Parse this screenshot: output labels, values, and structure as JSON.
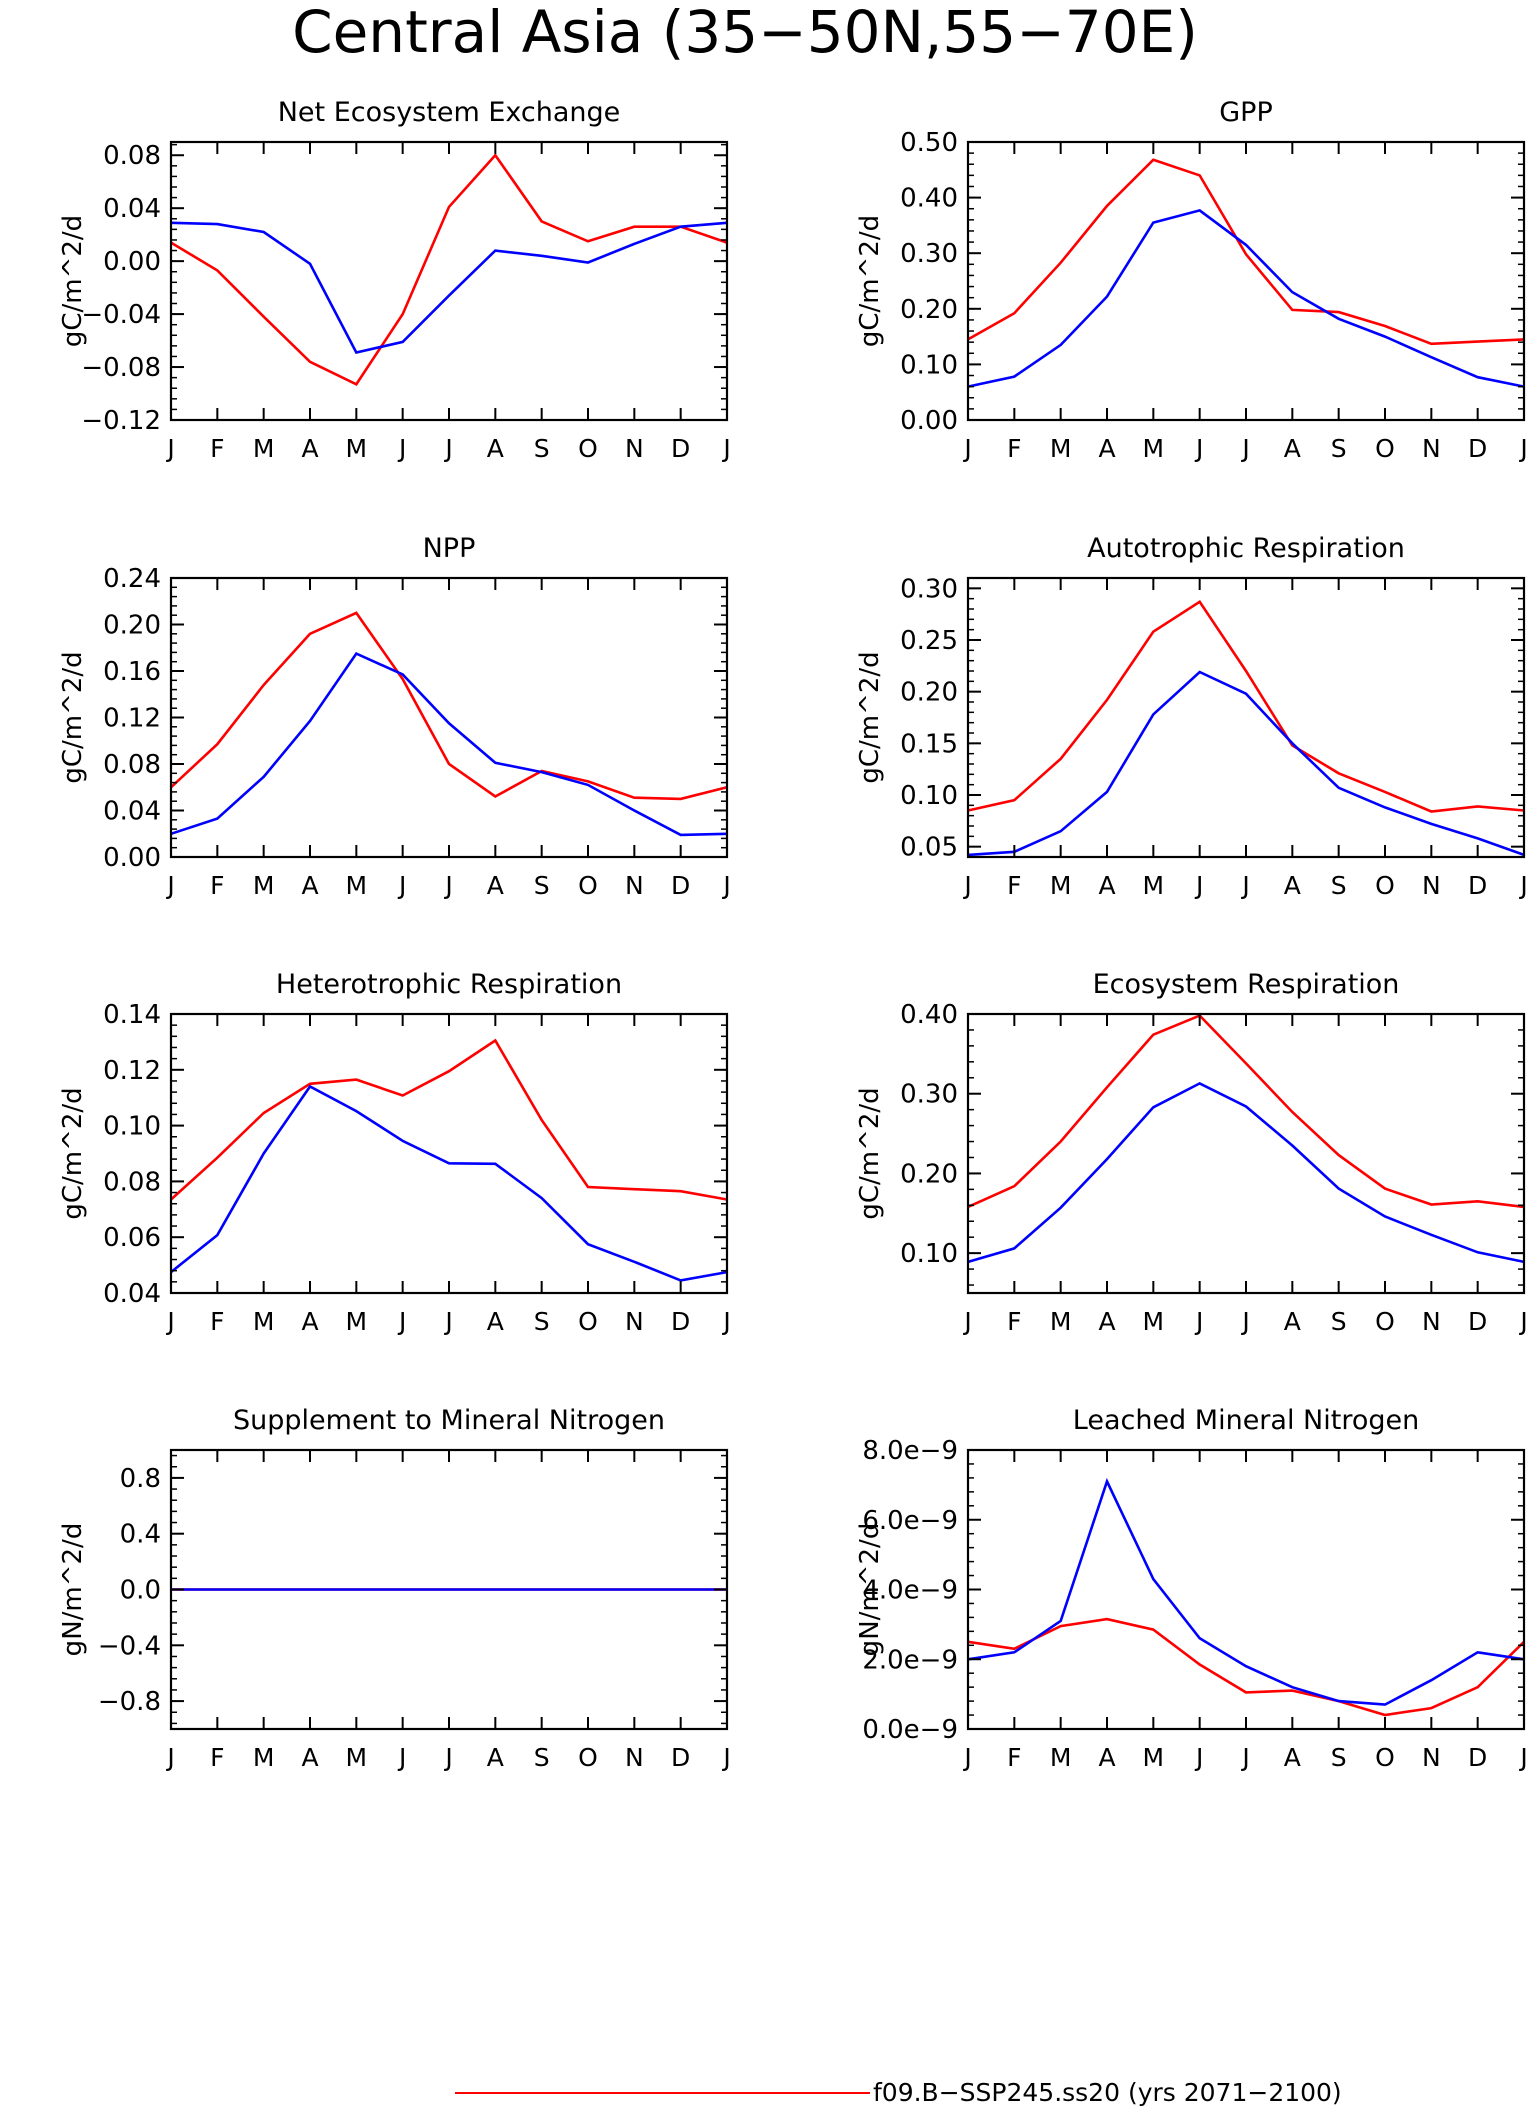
{
  "figure": {
    "title": "Central Asia (35−50N,55−70E)",
    "legend": [
      {
        "label": "f09.B−SSP245.ss20 (yrs 2071−2100)",
        "color": "#ff0000"
      }
    ]
  },
  "chart_data": [
    {
      "type": "line",
      "title": "Net Ecosystem Exchange",
      "ylabel": "gC/m^2/d",
      "categories": [
        "J",
        "F",
        "M",
        "A",
        "M",
        "J",
        "J",
        "A",
        "S",
        "O",
        "N",
        "D",
        "J"
      ],
      "ylim": [
        -0.12,
        0.09
      ],
      "yticks": [
        -0.12,
        -0.08,
        -0.04,
        0.0,
        0.04,
        0.08
      ],
      "yticklabels": [
        "−0.12",
        "−0.08",
        "−0.04",
        "0.00",
        "0.04",
        "0.08"
      ],
      "series": [
        {
          "color": "#ff0000",
          "values": [
            0.014,
            -0.007,
            -0.042,
            -0.076,
            -0.093,
            -0.04,
            0.041,
            0.08,
            0.03,
            0.015,
            0.026,
            0.026,
            0.014
          ]
        },
        {
          "color": "#0000ff",
          "values": [
            0.029,
            0.028,
            0.022,
            -0.002,
            -0.069,
            -0.061,
            -0.026,
            0.008,
            0.004,
            -0.001,
            0.013,
            0.026,
            0.029
          ]
        }
      ]
    },
    {
      "type": "line",
      "title": "GPP",
      "ylabel": "gC/m^2/d",
      "categories": [
        "J",
        "F",
        "M",
        "A",
        "M",
        "J",
        "J",
        "A",
        "S",
        "O",
        "N",
        "D",
        "J"
      ],
      "ylim": [
        0.0,
        0.5
      ],
      "yticks": [
        0.0,
        0.1,
        0.2,
        0.3,
        0.4,
        0.5
      ],
      "yticklabels": [
        "0.00",
        "0.10",
        "0.20",
        "0.30",
        "0.40",
        "0.50"
      ],
      "series": [
        {
          "color": "#ff0000",
          "values": [
            0.145,
            0.192,
            0.283,
            0.385,
            0.468,
            0.44,
            0.298,
            0.198,
            0.194,
            0.169,
            0.137,
            0.141,
            0.145
          ]
        },
        {
          "color": "#0000ff",
          "values": [
            0.06,
            0.078,
            0.135,
            0.222,
            0.355,
            0.377,
            0.315,
            0.23,
            0.182,
            0.15,
            0.113,
            0.077,
            0.06
          ]
        }
      ]
    },
    {
      "type": "line",
      "title": "NPP",
      "ylabel": "gC/m^2/d",
      "categories": [
        "J",
        "F",
        "M",
        "A",
        "M",
        "J",
        "J",
        "A",
        "S",
        "O",
        "N",
        "D",
        "J"
      ],
      "ylim": [
        0.0,
        0.24
      ],
      "yticks": [
        0.0,
        0.04,
        0.08,
        0.12,
        0.16,
        0.2,
        0.24
      ],
      "yticklabels": [
        "0.00",
        "0.04",
        "0.08",
        "0.12",
        "0.16",
        "0.20",
        "0.24"
      ],
      "series": [
        {
          "color": "#ff0000",
          "values": [
            0.06,
            0.097,
            0.148,
            0.192,
            0.21,
            0.153,
            0.08,
            0.052,
            0.074,
            0.065,
            0.051,
            0.05,
            0.06
          ]
        },
        {
          "color": "#0000ff",
          "values": [
            0.02,
            0.033,
            0.069,
            0.117,
            0.175,
            0.157,
            0.115,
            0.081,
            0.073,
            0.062,
            0.04,
            0.019,
            0.02
          ]
        }
      ]
    },
    {
      "type": "line",
      "title": "Autotrophic Respiration",
      "ylabel": "gC/m^2/d",
      "categories": [
        "J",
        "F",
        "M",
        "A",
        "M",
        "J",
        "J",
        "A",
        "S",
        "O",
        "N",
        "D",
        "J"
      ],
      "ylim": [
        0.04,
        0.31
      ],
      "yticks": [
        0.05,
        0.1,
        0.15,
        0.2,
        0.25,
        0.3
      ],
      "yticklabels": [
        "0.05",
        "0.10",
        "0.15",
        "0.20",
        "0.25",
        "0.30"
      ],
      "series": [
        {
          "color": "#ff0000",
          "values": [
            0.085,
            0.095,
            0.135,
            0.192,
            0.258,
            0.287,
            0.22,
            0.148,
            0.121,
            0.103,
            0.084,
            0.089,
            0.085
          ]
        },
        {
          "color": "#0000ff",
          "values": [
            0.042,
            0.045,
            0.065,
            0.103,
            0.178,
            0.219,
            0.198,
            0.15,
            0.107,
            0.088,
            0.072,
            0.058,
            0.042
          ]
        }
      ]
    },
    {
      "type": "line",
      "title": "Heterotrophic Respiration",
      "ylabel": "gC/m^2/d",
      "categories": [
        "J",
        "F",
        "M",
        "A",
        "M",
        "J",
        "J",
        "A",
        "S",
        "O",
        "N",
        "D",
        "J"
      ],
      "ylim": [
        0.04,
        0.14
      ],
      "yticks": [
        0.04,
        0.06,
        0.08,
        0.1,
        0.12,
        0.14
      ],
      "yticklabels": [
        "0.04",
        "0.06",
        "0.08",
        "0.10",
        "0.12",
        "0.14"
      ],
      "series": [
        {
          "color": "#ff0000",
          "values": [
            0.0735,
            0.0885,
            0.1045,
            0.115,
            0.1165,
            0.1108,
            0.1195,
            0.1305,
            0.102,
            0.078,
            0.0772,
            0.0765,
            0.0735
          ]
        },
        {
          "color": "#0000ff",
          "values": [
            0.0475,
            0.0607,
            0.09,
            0.114,
            0.1052,
            0.0945,
            0.0865,
            0.0863,
            0.074,
            0.0575,
            0.0512,
            0.0445,
            0.0475
          ]
        }
      ]
    },
    {
      "type": "line",
      "title": "Ecosystem Respiration",
      "ylabel": "gC/m^2/d",
      "categories": [
        "J",
        "F",
        "M",
        "A",
        "M",
        "J",
        "J",
        "A",
        "S",
        "O",
        "N",
        "D",
        "J"
      ],
      "ylim": [
        0.05,
        0.4
      ],
      "yticks": [
        0.1,
        0.2,
        0.3,
        0.4
      ],
      "yticklabels": [
        "0.10",
        "0.20",
        "0.30",
        "0.40"
      ],
      "series": [
        {
          "color": "#ff0000",
          "values": [
            0.158,
            0.184,
            0.24,
            0.308,
            0.374,
            0.398,
            0.338,
            0.277,
            0.223,
            0.181,
            0.161,
            0.165,
            0.158
          ]
        },
        {
          "color": "#0000ff",
          "values": [
            0.089,
            0.106,
            0.157,
            0.218,
            0.283,
            0.313,
            0.284,
            0.235,
            0.181,
            0.146,
            0.123,
            0.101,
            0.089
          ]
        }
      ]
    },
    {
      "type": "line",
      "title": "Supplement to Mineral Nitrogen",
      "ylabel": "gN/m^2/d",
      "categories": [
        "J",
        "F",
        "M",
        "A",
        "M",
        "J",
        "J",
        "A",
        "S",
        "O",
        "N",
        "D",
        "J"
      ],
      "ylim": [
        -1.0,
        1.0
      ],
      "yticks": [
        -0.8,
        -0.4,
        0.0,
        0.4,
        0.8
      ],
      "yticklabels": [
        "−0.8",
        "−0.4",
        "0.0",
        "0.4",
        "0.8"
      ],
      "series": [
        {
          "color": "#ff0000",
          "values": [
            0,
            0,
            0,
            0,
            0,
            0,
            0,
            0,
            0,
            0,
            0,
            0,
            0
          ]
        },
        {
          "color": "#0000ff",
          "values": [
            0,
            0,
            0,
            0,
            0,
            0,
            0,
            0,
            0,
            0,
            0,
            0,
            0
          ]
        }
      ]
    },
    {
      "type": "line",
      "title": "Leached Mineral Nitrogen",
      "ylabel": "gN/m^2/d",
      "categories": [
        "J",
        "F",
        "M",
        "A",
        "M",
        "J",
        "J",
        "A",
        "S",
        "O",
        "N",
        "D",
        "J"
      ],
      "ylim": [
        0.0,
        8e-09
      ],
      "yticks": [
        0.0,
        2e-09,
        4e-09,
        6e-09,
        8e-09
      ],
      "yticklabels": [
        "0.0e−9",
        "2.0e−9",
        "4.0e−9",
        "6.0e−9",
        "8.0e−9"
      ],
      "series": [
        {
          "color": "#ff0000",
          "values": [
            2.5e-09,
            2.3e-09,
            2.95e-09,
            3.15e-09,
            2.85e-09,
            1.85e-09,
            1.05e-09,
            1.1e-09,
            8e-10,
            4e-10,
            6e-10,
            1.2e-09,
            2.5e-09
          ]
        },
        {
          "color": "#0000ff",
          "values": [
            2e-09,
            2.2e-09,
            3.1e-09,
            7.1e-09,
            4.3e-09,
            2.6e-09,
            1.8e-09,
            1.2e-09,
            8e-10,
            7e-10,
            1.4e-09,
            2.2e-09,
            2e-09
          ]
        }
      ]
    }
  ]
}
